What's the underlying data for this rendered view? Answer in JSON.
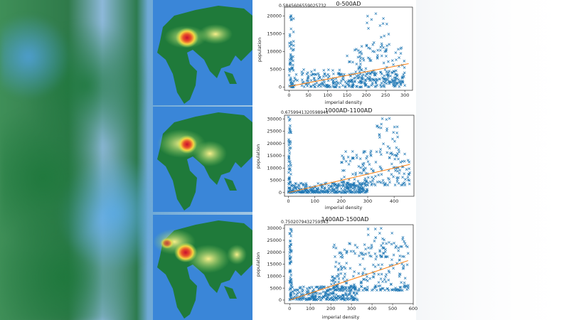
{
  "colors": {
    "marker": "#1f77b4",
    "trend": "#ff7f0e",
    "ocean": "#3a86d8",
    "land": "#1f7a3a"
  },
  "panels": [
    {
      "title": "0-500AD",
      "correlation": "0.5845606559025732"
    },
    {
      "title": "1000AD-1100AD",
      "correlation": "0.6759941320598941"
    },
    {
      "title": "1400AD-1500AD",
      "correlation": "0.7502079432759543"
    }
  ],
  "chart_data": [
    {
      "type": "scatter",
      "title": "0-500AD",
      "annotation": "0.5845606559025732",
      "xlabel": "imperial density",
      "ylabel": "population",
      "xlim": [
        -12,
        320
      ],
      "ylim": [
        -900,
        22500
      ],
      "xticks": [
        0,
        50,
        100,
        150,
        200,
        250,
        300
      ],
      "yticks": [
        0,
        5000,
        10000,
        15000,
        20000
      ],
      "marker": "x",
      "trendline": {
        "x": [
          0,
          310
        ],
        "y": [
          200,
          6600
        ]
      },
      "clusters": [
        {
          "x_range": [
            0,
            12
          ],
          "y_range": [
            0,
            21000
          ],
          "count": 60
        },
        {
          "x_range": [
            10,
            300
          ],
          "y_range": [
            0,
            5000
          ],
          "count": 260
        },
        {
          "x_range": [
            150,
            300
          ],
          "y_range": [
            1000,
            12000
          ],
          "count": 120
        },
        {
          "x_range": [
            200,
            260
          ],
          "y_range": [
            10000,
            21000
          ],
          "count": 25
        }
      ]
    },
    {
      "type": "scatter",
      "title": "1000AD-1100AD",
      "annotation": "0.6759941320598941",
      "xlabel": "imperial density",
      "ylabel": "population",
      "xlim": [
        -15,
        475
      ],
      "ylim": [
        -1500,
        31500
      ],
      "xticks": [
        0,
        100,
        200,
        300,
        400
      ],
      "yticks": [
        0,
        5000,
        10000,
        15000,
        20000,
        25000,
        30000
      ],
      "marker": "x",
      "trendline": {
        "x": [
          0,
          460
        ],
        "y": [
          0,
          11500
        ]
      },
      "clusters": [
        {
          "x_range": [
            0,
            10
          ],
          "y_range": [
            0,
            31000
          ],
          "count": 60
        },
        {
          "x_range": [
            10,
            300
          ],
          "y_range": [
            0,
            4000
          ],
          "count": 280
        },
        {
          "x_range": [
            200,
            460
          ],
          "y_range": [
            3000,
            17000
          ],
          "count": 160
        },
        {
          "x_range": [
            330,
            420
          ],
          "y_range": [
            15000,
            31000
          ],
          "count": 35
        }
      ]
    },
    {
      "type": "scatter",
      "title": "1400AD-1500AD",
      "annotation": "0.7502079432759543",
      "xlabel": "imperial density",
      "ylabel": "population",
      "xlim": [
        -25,
        600
      ],
      "ylim": [
        -1500,
        31500
      ],
      "xticks": [
        0,
        100,
        200,
        300,
        400,
        500,
        600
      ],
      "yticks": [
        0,
        5000,
        10000,
        15000,
        20000,
        25000,
        30000
      ],
      "marker": "x",
      "trendline": {
        "x": [
          0,
          575
        ],
        "y": [
          0,
          16500
        ]
      },
      "clusters": [
        {
          "x_range": [
            0,
            10
          ],
          "y_range": [
            0,
            30000
          ],
          "count": 60
        },
        {
          "x_range": [
            10,
            330
          ],
          "y_range": [
            0,
            6000
          ],
          "count": 260
        },
        {
          "x_range": [
            200,
            580
          ],
          "y_range": [
            4000,
            24000
          ],
          "count": 220
        },
        {
          "x_range": [
            380,
            560
          ],
          "y_range": [
            18000,
            31000
          ],
          "count": 40
        }
      ]
    }
  ]
}
